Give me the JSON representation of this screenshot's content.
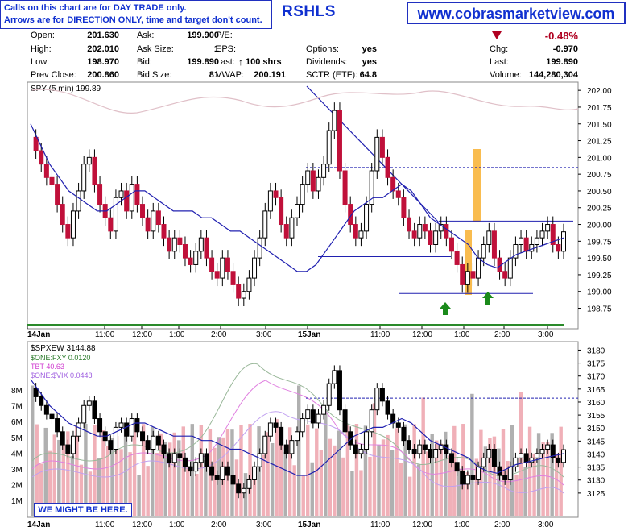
{
  "header": {
    "note_line1": "Calls on this chart are for DAY TRADE only.",
    "note_line2": "Arrows are for DIRECTION ONLY, time and target don't count.",
    "ticker": "RSHLS",
    "site": "www.cobrasmarketview.com"
  },
  "quote": {
    "open_label": "Open:",
    "open": "201.630",
    "high_label": "High:",
    "high": "202.010",
    "low_label": "Low:",
    "low": "198.970",
    "prev_label": "Prev Close:",
    "prev": "200.860",
    "ask_label": "Ask:",
    "ask": "199.900",
    "asksize_label": "Ask Size:",
    "asksize": "1",
    "bid_label": "Bid:",
    "bid": "199.890",
    "bidsize_label": "Bid Size:",
    "bidsize": "81",
    "pe_label": "P/E:",
    "eps_label": "EPS:",
    "last_label": "Last:",
    "last_shares": "100 shrs",
    "vwap_label": "VWAP:",
    "vwap": "200.191",
    "options_label": "Options:",
    "options": "yes",
    "dividends_label": "Dividends:",
    "dividends": "yes",
    "sctr_label": "SCTR (ETF):",
    "sctr": "64.8",
    "change_pct": "-0.48%",
    "chg_label": "Chg:",
    "chg": "-0.970",
    "last2_label": "Last:",
    "last2": "199.890",
    "volume_label": "Volume:",
    "volume": "144,280,304"
  },
  "bottom_note": "WE MIGHT BE HERE.",
  "colors": {
    "up": "#000000",
    "down": "#c0103a",
    "ma": "#2020b0",
    "trend": "#2020b0",
    "level_dash": "#2020b0",
    "orange": "#f8b030",
    "arrow": "#1a8a1a",
    "rsi_line": "#e0c0c8",
    "vol_down": "#f0b0b8",
    "vol_up": "#b0b0b0"
  },
  "chart_data": [
    {
      "type": "candlestick",
      "title": "SPY (5 min) 199.89",
      "ylim": [
        198.6,
        202.05
      ],
      "y_ticks": [
        "202.00",
        "201.75",
        "201.50",
        "201.25",
        "201.00",
        "200.75",
        "200.50",
        "200.25",
        "200.00",
        "199.75",
        "199.50",
        "199.25",
        "199.00",
        "198.75"
      ],
      "x_labels": [
        "14Jan",
        "11:00",
        "12:00",
        "1:00",
        "2:00",
        "3:00",
        "15Jan",
        "11:00",
        "12:00",
        "1:00",
        "2:00",
        "3:00"
      ],
      "levels": [
        200.85,
        200.05,
        199.52,
        198.97
      ],
      "close_series": [
        201.3,
        201.1,
        200.9,
        200.7,
        200.6,
        200.3,
        200.0,
        199.8,
        200.2,
        200.5,
        200.9,
        201.0,
        200.6,
        200.3,
        200.1,
        199.9,
        200.4,
        200.5,
        200.2,
        200.6,
        200.3,
        200.1,
        199.9,
        200.2,
        200.0,
        199.8,
        199.6,
        199.8,
        199.7,
        199.5,
        199.4,
        199.6,
        199.8,
        199.5,
        199.3,
        199.2,
        199.5,
        199.3,
        199.1,
        198.9,
        199.0,
        199.2,
        199.5,
        199.8,
        200.2,
        200.5,
        200.4,
        200.0,
        199.8,
        200.1,
        200.3,
        200.6,
        200.8,
        200.5,
        200.7,
        200.9,
        201.4,
        201.7,
        200.8,
        200.3,
        200.0,
        199.8,
        199.9,
        200.3,
        200.8,
        201.3,
        201.0,
        200.7,
        200.5,
        200.4,
        200.1,
        199.9,
        199.8,
        200.0,
        199.9,
        199.7,
        199.9,
        200.0,
        199.8,
        199.6,
        199.4,
        199.1,
        199.3,
        199.2,
        199.5,
        199.7,
        199.9,
        199.5,
        199.3,
        199.2,
        199.5,
        199.7,
        199.8,
        199.6,
        199.7,
        199.8,
        199.9,
        200.0,
        199.7,
        199.6,
        199.89
      ],
      "ma_series": [
        201.5,
        201.2,
        200.9,
        200.7,
        200.5,
        200.4,
        200.3,
        200.2,
        200.2,
        200.3,
        200.4,
        200.5,
        200.5,
        200.4,
        200.3,
        200.2,
        200.2,
        200.2,
        200.1,
        200.1,
        200.0,
        199.9,
        199.9,
        199.8,
        199.7,
        199.6,
        199.5,
        199.4,
        199.3,
        199.3,
        199.4,
        199.6,
        199.8,
        200.0,
        200.2,
        200.3,
        200.4,
        200.4,
        200.5,
        200.6,
        200.5,
        200.3,
        200.1,
        200.0,
        199.9,
        199.8,
        199.7,
        199.5,
        199.4,
        199.35,
        199.45,
        199.55,
        199.6,
        199.65,
        199.7,
        199.75,
        199.8
      ],
      "markers": [
        "up arrow",
        "up arrow"
      ]
    },
    {
      "type": "candlestick",
      "title": "$SPXEW 3144.88",
      "legend": [
        "$ONE:FXY 0.0120",
        "TBT 40.63",
        "$ONE:$VIX 0.0448"
      ],
      "ylim": [
        3120,
        3182
      ],
      "y_ticks": [
        "3180",
        "3175",
        "3170",
        "3165",
        "3160",
        "3155",
        "3150",
        "3145",
        "3140",
        "3135",
        "3130",
        "3125"
      ],
      "volume_ticks": [
        "8M",
        "7M",
        "6M",
        "5M",
        "4M",
        "3M",
        "2M",
        "1M"
      ],
      "x_labels": [
        "14Jan",
        "11:00",
        "12:00",
        "1:00",
        "2:00",
        "3:00",
        "15Jan",
        "11:00",
        "12:00",
        "1:00",
        "2:00",
        "3:00"
      ],
      "level": 3161.5
    }
  ]
}
